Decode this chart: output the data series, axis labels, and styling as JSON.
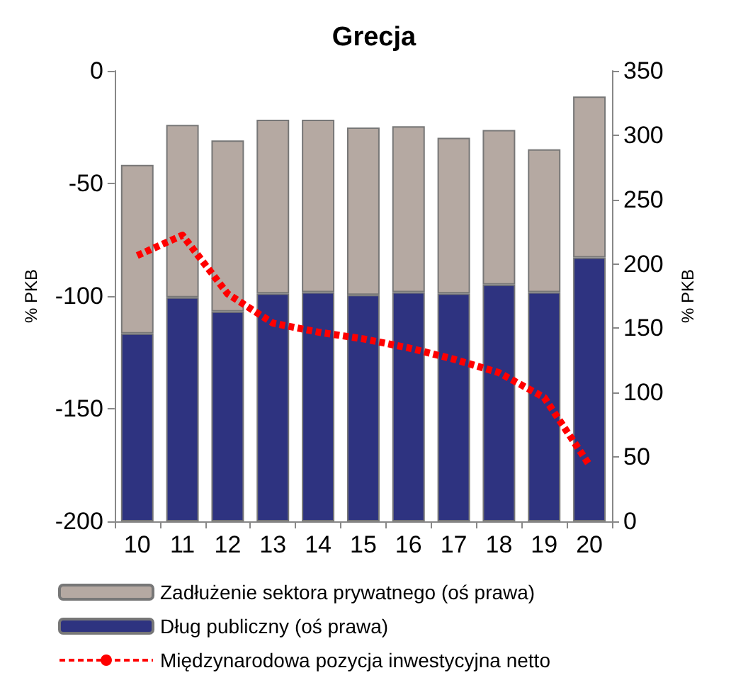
{
  "chart_data": {
    "type": "bar",
    "title": "Grecja",
    "ylabel": "% PKB",
    "y2label": "% PKB",
    "categories": [
      "10",
      "11",
      "12",
      "13",
      "14",
      "15",
      "16",
      "17",
      "18",
      "19",
      "20"
    ],
    "stacked": true,
    "legend": "bottom",
    "grid": false,
    "ylim": [
      -200,
      0
    ],
    "yticks": [
      -200,
      -150,
      -100,
      -50,
      0
    ],
    "y2lim": [
      0,
      350
    ],
    "y2ticks": [
      0,
      50,
      100,
      150,
      200,
      250,
      300,
      350
    ],
    "series": [
      {
        "name": "Dług publiczny (oś prawa)",
        "color": "#2e3380",
        "axis": "y2",
        "values": [
          146,
          174,
          163,
          177,
          178,
          176,
          178,
          177,
          184,
          178,
          205
        ]
      },
      {
        "name": "Zadłużenie sektora prywatnego (oś prawa)",
        "color": "#b5a9a2",
        "axis": "y2",
        "values": [
          131,
          134,
          133,
          135,
          134,
          130,
          129,
          121,
          120,
          111,
          125
        ]
      },
      {
        "name": "Międzynarodowa pozycja inwestycyjna netto",
        "type": "line",
        "color": "#ff0000",
        "axis": "y",
        "line_style": "dashed",
        "marker": "none",
        "values": [
          -82,
          -73,
          -99,
          -112,
          -116,
          -119,
          -123,
          -128,
          -134,
          -145,
          -175
        ]
      }
    ]
  }
}
